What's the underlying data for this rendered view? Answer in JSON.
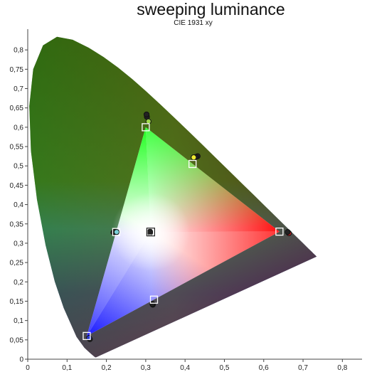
{
  "chart_data": {
    "type": "scatter",
    "title": "sweeping luminance",
    "subtitle": "CIE 1931 xy",
    "xlabel": "",
    "ylabel": "",
    "xlim": [
      0,
      0.85
    ],
    "ylim": [
      0,
      0.85
    ],
    "x_ticks": [
      "0",
      "0,1",
      "0,2",
      "0,3",
      "0,4",
      "0,5",
      "0,6",
      "0,7",
      "0,8"
    ],
    "y_ticks": [
      "0",
      "0,05",
      "0,1",
      "0,15",
      "0,2",
      "0,25",
      "0,3",
      "0,35",
      "0,4",
      "0,45",
      "0,5",
      "0,55",
      "0,6",
      "0,65",
      "0,7",
      "0,75",
      "0,8"
    ],
    "grid": false,
    "target_gamut": {
      "red": [
        0.64,
        0.33
      ],
      "green": [
        0.3,
        0.6
      ],
      "blue": [
        0.15,
        0.06
      ],
      "white": [
        0.3127,
        0.329
      ]
    },
    "targets": [
      {
        "x": 0.64,
        "y": 0.33
      },
      {
        "x": 0.3,
        "y": 0.6
      },
      {
        "x": 0.15,
        "y": 0.06
      },
      {
        "x": 0.3127,
        "y": 0.329
      },
      {
        "x": 0.225,
        "y": 0.329
      },
      {
        "x": 0.321,
        "y": 0.154
      },
      {
        "x": 0.419,
        "y": 0.505
      }
    ],
    "measured": [
      {
        "x": 0.664,
        "y": 0.326,
        "color": "#d02020"
      },
      {
        "x": 0.661,
        "y": 0.329,
        "color": "#222222"
      },
      {
        "x": 0.303,
        "y": 0.627,
        "color": "#222222"
      },
      {
        "x": 0.302,
        "y": 0.633,
        "color": "#222222"
      },
      {
        "x": 0.307,
        "y": 0.615,
        "color": "#9ed84a"
      },
      {
        "x": 0.158,
        "y": 0.052,
        "color": "#222222"
      },
      {
        "x": 0.156,
        "y": 0.055,
        "color": "#2a3ad0"
      },
      {
        "x": 0.311,
        "y": 0.327,
        "color": "#ffffff"
      },
      {
        "x": 0.311,
        "y": 0.33,
        "color": "#222222"
      },
      {
        "x": 0.218,
        "y": 0.328,
        "color": "#222222"
      },
      {
        "x": 0.222,
        "y": 0.33,
        "color": "#222222"
      },
      {
        "x": 0.226,
        "y": 0.329,
        "color": "#7ad0d8"
      },
      {
        "x": 0.318,
        "y": 0.141,
        "color": "#222222"
      },
      {
        "x": 0.317,
        "y": 0.143,
        "color": "#222222"
      },
      {
        "x": 0.432,
        "y": 0.525,
        "color": "#222222"
      },
      {
        "x": 0.427,
        "y": 0.523,
        "color": "#222222"
      },
      {
        "x": 0.422,
        "y": 0.522,
        "color": "#f0ec30"
      }
    ]
  }
}
